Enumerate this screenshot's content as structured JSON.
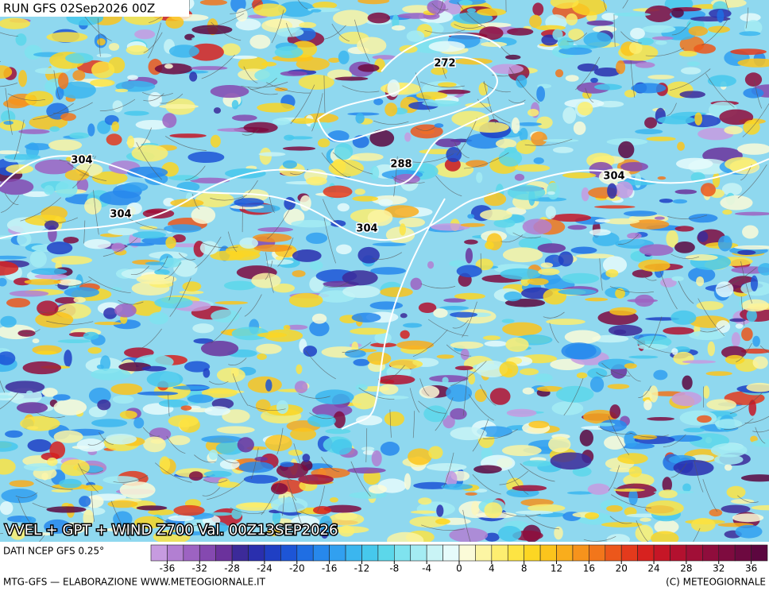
{
  "header": {
    "run": "RUN GFS 02Sep2026 00Z",
    "title": "VVEL + GPT + WIND Z700 Val. 00Z13SEP2026"
  },
  "map": {
    "contour_labels": [
      "272",
      "288",
      "304",
      "304",
      "304",
      "304"
    ]
  },
  "legend": {
    "source": "DATI NCEP GFS 0.25°",
    "colorbar": {
      "range": [
        -38,
        38
      ],
      "ticks": [
        -36,
        -32,
        -28,
        -24,
        -20,
        -16,
        -12,
        -8,
        -4,
        0,
        4,
        8,
        12,
        16,
        20,
        24,
        28,
        32,
        36
      ],
      "colors": [
        "#c79be0",
        "#b27fd2",
        "#9d63c2",
        "#8549b0",
        "#6b329c",
        "#3c2a99",
        "#2a2fae",
        "#1f3fc4",
        "#1d55d6",
        "#1f6ee3",
        "#2788ec",
        "#31a0f0",
        "#3bb6ef",
        "#46c8ec",
        "#5cd7ea",
        "#7fe3ef",
        "#a4ecf3",
        "#c9f4f6",
        "#e6fbfb",
        "#fbfbd8",
        "#fcf5a3",
        "#fdee70",
        "#fde443",
        "#fcd623",
        "#fbc41c",
        "#f9ad1c",
        "#f6931c",
        "#f2761b",
        "#ec571b",
        "#e43a1c",
        "#d7221f",
        "#c61626",
        "#b3112f",
        "#a10f37",
        "#8f0d3c",
        "#7e0b3f",
        "#6d0940",
        "#5c073f"
      ]
    }
  },
  "footer": {
    "left": "MTG-GFS — ELABORAZIONE WWW.METEOGIORNALE.IT",
    "right": "(C) METEOGIORNALE"
  }
}
